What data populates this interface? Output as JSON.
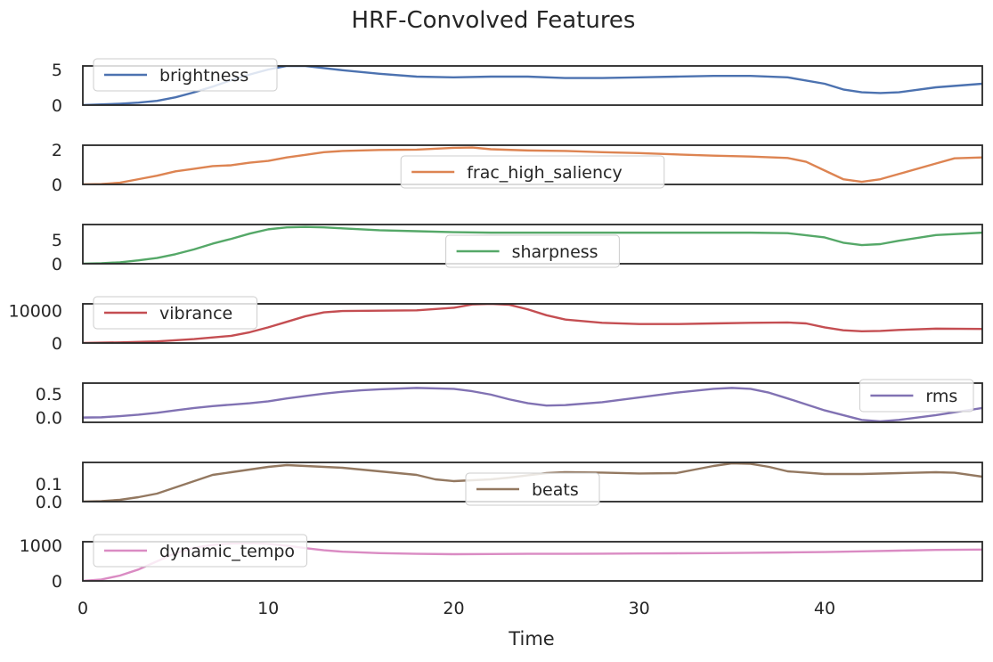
{
  "chart_data": {
    "type": "line",
    "title": "HRF-Convolved Features",
    "xlabel": "Time",
    "xlim": [
      0,
      48.5
    ],
    "xticks": [
      0,
      10,
      20,
      30,
      40
    ],
    "xtick_labels": [
      "0",
      "10",
      "20",
      "30",
      "40"
    ],
    "grid": false,
    "series": [
      {
        "name": "brightness",
        "color": "#4c72b0",
        "legend_loc": "upper left",
        "ylim": [
          0,
          5.5
        ],
        "yticks": [
          0,
          5
        ],
        "ytick_labels": [
          "0",
          "5"
        ],
        "x": [
          0,
          1,
          2,
          3,
          4,
          5,
          6,
          7,
          8,
          9,
          10,
          11,
          12,
          13,
          14,
          16,
          18,
          20,
          22,
          24,
          26,
          28,
          30,
          32,
          34,
          36,
          38,
          40,
          41,
          42,
          43,
          44,
          46,
          48.5
        ],
        "y": [
          0,
          0.1,
          0.2,
          0.35,
          0.6,
          1.1,
          1.8,
          2.6,
          3.5,
          4.3,
          5.0,
          5.5,
          5.5,
          5.2,
          4.9,
          4.4,
          4.0,
          3.9,
          4.0,
          4.0,
          3.8,
          3.8,
          3.9,
          4.0,
          4.1,
          4.1,
          3.9,
          3.0,
          2.2,
          1.8,
          1.7,
          1.8,
          2.5,
          3.0
        ]
      },
      {
        "name": "frac_high_saliency",
        "color": "#dd8452",
        "legend_loc": "lower center",
        "ylim": [
          0,
          2.25
        ],
        "yticks": [
          0,
          2
        ],
        "ytick_labels": [
          "0",
          "2"
        ],
        "x": [
          0,
          1,
          2,
          3,
          4,
          5,
          6,
          7,
          8,
          9,
          10,
          11,
          12,
          13,
          14,
          16,
          18,
          20,
          21,
          22,
          24,
          26,
          28,
          30,
          32,
          34,
          36,
          38,
          39,
          40,
          41,
          42,
          43,
          44,
          46,
          47,
          48.5
        ],
        "y": [
          0,
          0.02,
          0.1,
          0.3,
          0.5,
          0.75,
          0.9,
          1.05,
          1.1,
          1.25,
          1.35,
          1.55,
          1.7,
          1.85,
          1.92,
          1.98,
          2.0,
          2.1,
          2.12,
          2.02,
          1.95,
          1.92,
          1.85,
          1.8,
          1.72,
          1.65,
          1.6,
          1.52,
          1.3,
          0.8,
          0.3,
          0.15,
          0.3,
          0.6,
          1.2,
          1.5,
          1.55
        ]
      },
      {
        "name": "sharpness",
        "color": "#55a868",
        "legend_loc": "lower center",
        "ylim": [
          0,
          8.2
        ],
        "yticks": [
          0,
          5
        ],
        "ytick_labels": [
          "0",
          "5"
        ],
        "x": [
          0,
          1,
          2,
          3,
          4,
          5,
          6,
          7,
          8,
          9,
          10,
          11,
          12,
          13,
          14,
          16,
          18,
          20,
          22,
          24,
          26,
          28,
          30,
          32,
          34,
          36,
          38,
          40,
          41,
          42,
          43,
          44,
          46,
          48.5
        ],
        "y": [
          0,
          0.1,
          0.3,
          0.7,
          1.2,
          2.0,
          3.0,
          4.2,
          5.2,
          6.3,
          7.2,
          7.6,
          7.7,
          7.6,
          7.4,
          7.0,
          6.8,
          6.6,
          6.5,
          6.5,
          6.5,
          6.5,
          6.5,
          6.5,
          6.5,
          6.5,
          6.4,
          5.5,
          4.4,
          3.9,
          4.1,
          4.8,
          6.0,
          6.5
        ]
      },
      {
        "name": "vibrance",
        "color": "#c44e52",
        "legend_loc": "upper left",
        "ylim": [
          0,
          12000
        ],
        "yticks": [
          0,
          10000
        ],
        "ytick_labels": [
          "0",
          "10000"
        ],
        "x": [
          0,
          2,
          4,
          6,
          8,
          9,
          10,
          11,
          12,
          13,
          14,
          16,
          18,
          20,
          21,
          22,
          23,
          24,
          25,
          26,
          28,
          30,
          32,
          34,
          36,
          38,
          39,
          40,
          41,
          42,
          43,
          44,
          46,
          48.5
        ],
        "y": [
          0,
          200,
          500,
          1200,
          2200,
          3300,
          4800,
          6500,
          8200,
          9400,
          9800,
          9900,
          10000,
          10800,
          11800,
          12000,
          11700,
          10300,
          8500,
          7200,
          6200,
          5800,
          5800,
          6000,
          6200,
          6300,
          6000,
          4800,
          3900,
          3600,
          3700,
          4000,
          4400,
          4300
        ]
      },
      {
        "name": "rms",
        "color": "#8172b3",
        "legend_loc": "upper right",
        "ylim": [
          -0.1,
          0.72
        ],
        "yticks": [
          0,
          0.5
        ],
        "ytick_labels": [
          "0.0",
          "0.5"
        ],
        "x": [
          0,
          1,
          2,
          3,
          4,
          5,
          6,
          7,
          8,
          9,
          10,
          11,
          12,
          13,
          14,
          15,
          16,
          18,
          20,
          21,
          22,
          23,
          24,
          25,
          26,
          28,
          30,
          32,
          34,
          35,
          36,
          37,
          38,
          40,
          42,
          43,
          44,
          46,
          48.5
        ],
        "y": [
          0,
          0.005,
          0.03,
          0.06,
          0.1,
          0.15,
          0.2,
          0.24,
          0.27,
          0.3,
          0.34,
          0.4,
          0.45,
          0.5,
          0.54,
          0.57,
          0.59,
          0.62,
          0.6,
          0.55,
          0.48,
          0.38,
          0.3,
          0.25,
          0.26,
          0.32,
          0.42,
          0.52,
          0.6,
          0.62,
          0.6,
          0.52,
          0.4,
          0.15,
          -0.05,
          -0.08,
          -0.05,
          0.05,
          0.2
        ]
      },
      {
        "name": "beats",
        "color": "#937860",
        "legend_loc": "lower center",
        "ylim": [
          0,
          0.22
        ],
        "yticks": [
          0,
          0.1
        ],
        "ytick_labels": [
          "0.0",
          "0.1"
        ],
        "x": [
          0,
          1,
          2,
          3,
          4,
          5,
          6,
          7,
          8,
          9,
          10,
          11,
          12,
          14,
          16,
          18,
          19,
          20,
          21,
          22,
          23,
          24,
          25,
          26,
          28,
          30,
          32,
          33,
          34,
          35,
          36,
          37,
          38,
          40,
          42,
          44,
          46,
          47,
          48.5
        ],
        "y": [
          0,
          0.003,
          0.01,
          0.025,
          0.045,
          0.08,
          0.115,
          0.15,
          0.165,
          0.18,
          0.195,
          0.205,
          0.2,
          0.19,
          0.17,
          0.15,
          0.125,
          0.115,
          0.12,
          0.125,
          0.135,
          0.148,
          0.16,
          0.165,
          0.163,
          0.158,
          0.16,
          0.18,
          0.2,
          0.215,
          0.212,
          0.195,
          0.17,
          0.155,
          0.155,
          0.16,
          0.165,
          0.162,
          0.14
        ]
      },
      {
        "name": "dynamic_tempo",
        "color": "#da8bc3",
        "legend_loc": "upper left",
        "ylim": [
          0,
          1100
        ],
        "yticks": [
          0,
          1000
        ],
        "ytick_labels": [
          "0",
          "1000"
        ],
        "x": [
          0,
          1,
          2,
          3,
          4,
          5,
          6,
          7,
          8,
          9,
          10,
          11,
          12,
          13,
          14,
          16,
          18,
          20,
          22,
          24,
          26,
          28,
          30,
          32,
          34,
          36,
          38,
          40,
          42,
          44,
          46,
          48.5
        ],
        "y": [
          0,
          40,
          150,
          320,
          550,
          780,
          930,
          1010,
          1050,
          1060,
          1040,
          990,
          920,
          860,
          820,
          780,
          760,
          750,
          755,
          760,
          760,
          765,
          770,
          775,
          780,
          790,
          800,
          810,
          830,
          850,
          870,
          880
        ]
      }
    ]
  }
}
